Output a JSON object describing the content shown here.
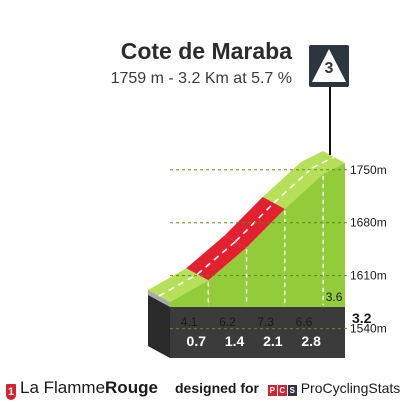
{
  "header": {
    "title": "Cote de Maraba",
    "subtitle": "1759 m - 3.2 Km at 5.7 %",
    "category": "3"
  },
  "colors": {
    "green": "#93cc3a",
    "green_light": "#b6e05a",
    "red": "#e2202f",
    "red_light": "#ff4a57",
    "base_dark": "#3b3b3b",
    "side_gray": "#a9a9a9",
    "badge": "#2d3540"
  },
  "chart_data": {
    "type": "area",
    "title": "Cote de Maraba",
    "distance_km": 3.2,
    "elevation_ticks_m": [
      "1540m",
      "1610m",
      "1680m",
      "1750m"
    ],
    "segments": [
      {
        "km_start": 0.0,
        "km_end": 0.7,
        "gradient_pct": 4.1,
        "label": "0.7",
        "difficulty": "moderate"
      },
      {
        "km_start": 0.7,
        "km_end": 1.4,
        "gradient_pct": 6.2,
        "label": "1.4",
        "difficulty": "hard"
      },
      {
        "km_start": 1.4,
        "km_end": 2.1,
        "gradient_pct": 7.3,
        "label": "2.1",
        "difficulty": "hard"
      },
      {
        "km_start": 2.1,
        "km_end": 2.8,
        "gradient_pct": 6.6,
        "label": "2.8",
        "difficulty": "moderate"
      },
      {
        "km_start": 2.8,
        "km_end": 3.2,
        "gradient_pct": 3.6,
        "label": "3.2",
        "difficulty": "moderate"
      }
    ]
  },
  "footer": {
    "brand_light": "La Flamme",
    "brand_bold": "Rouge",
    "badge": "1",
    "designed_for": "designed for",
    "pcs_letters": [
      "P",
      "C",
      "S"
    ],
    "pcs_name": "ProCyclingStats"
  }
}
